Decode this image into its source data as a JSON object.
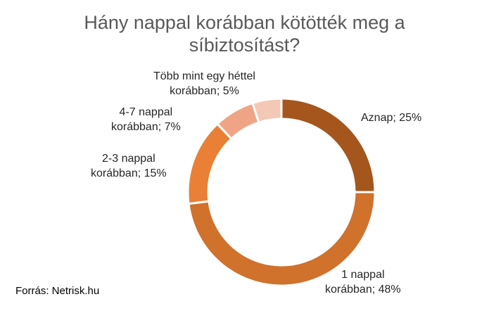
{
  "chart_data": {
    "type": "pie",
    "title_lines": [
      "Hány nappal korábban kötötték meg a",
      "síbiztosítást?"
    ],
    "slices": [
      {
        "label_lines": [
          "Aznap; 25%"
        ],
        "value": 25,
        "color": "#A5561D"
      },
      {
        "label_lines": [
          "1 nappal",
          "korábban; 48%"
        ],
        "value": 48,
        "color": "#D0712C"
      },
      {
        "label_lines": [
          "2-3 nappal",
          "korábban; 15%"
        ],
        "value": 15,
        "color": "#E98035"
      },
      {
        "label_lines": [
          "4-7 nappal",
          "korábban; 7%"
        ],
        "value": 7,
        "color": "#EFA585"
      },
      {
        "label_lines": [
          "Több mint egy héttel",
          "korábban; 5%"
        ],
        "value": 5,
        "color": "#F4C8B6"
      }
    ]
  },
  "source": "Forrás: Netrisk.hu"
}
